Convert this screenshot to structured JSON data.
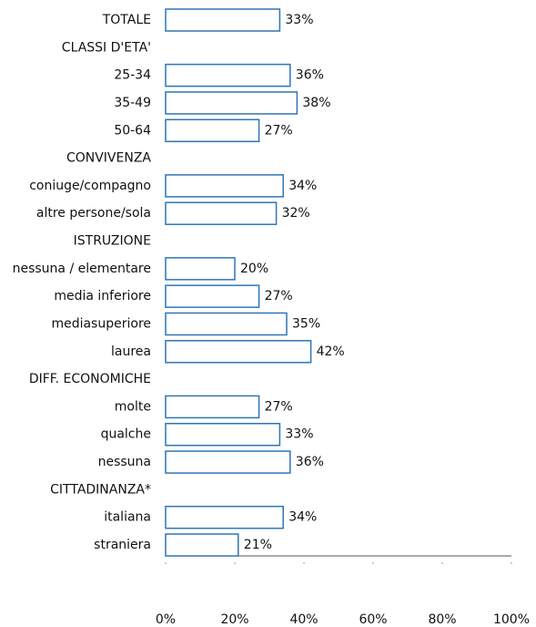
{
  "chart_data": {
    "type": "bar",
    "orientation": "horizontal",
    "categories": [
      "TOTALE",
      "CLASSI D'ETA'",
      "25-34",
      "35-49",
      "50-64",
      "CONVIVENZA",
      "coniuge/compagno",
      "altre persone/sola",
      "ISTRUZIONE",
      "nessuna / elementare",
      "media inferiore",
      "mediasuperiore",
      "laurea",
      "DIFF. ECONOMICHE",
      "molte",
      "qualche",
      "nessuna",
      "CITTADINANZA*",
      "italiana",
      "straniera"
    ],
    "values": [
      33,
      null,
      36,
      38,
      27,
      null,
      34,
      32,
      null,
      20,
      27,
      35,
      42,
      null,
      27,
      33,
      36,
      null,
      34,
      21
    ],
    "value_labels": [
      "33%",
      null,
      "36%",
      "38%",
      "27%",
      null,
      "34%",
      "32%",
      null,
      "20%",
      "27%",
      "35%",
      "42%",
      null,
      "27%",
      "33%",
      "36%",
      null,
      "34%",
      "21%"
    ],
    "color": "#2e75b6",
    "xlim": [
      0,
      100
    ],
    "xticks": [
      {
        "value": 0,
        "label": "0%"
      },
      {
        "value": 20,
        "label": "20%"
      },
      {
        "value": 40,
        "label": "40%"
      },
      {
        "value": 60,
        "label": "60%"
      },
      {
        "value": 80,
        "label": "80%"
      },
      {
        "value": 100,
        "label": "100%"
      }
    ]
  }
}
